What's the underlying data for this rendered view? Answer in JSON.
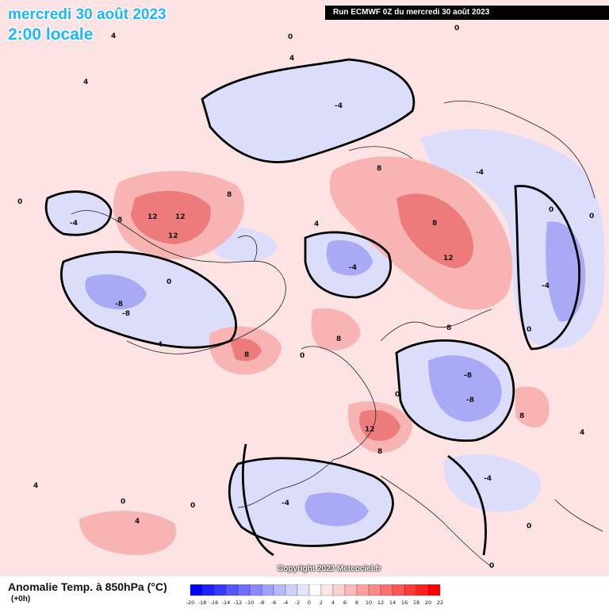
{
  "header": {
    "date": "mercredi 30 août 2023",
    "time": "2:00 locale",
    "run": "Run ECMWF 0Z du mercredi 30 août 2023"
  },
  "footer": {
    "parameter": "Anomalie Temp. à 850hPa (°C)",
    "step": "(+0h)",
    "copyright": "Copyright 2023 Meteociel.fr"
  },
  "legend": {
    "ticks": [
      "-20",
      "-18",
      "-16",
      "-14",
      "-12",
      "-10",
      "-8",
      "-6",
      "-4",
      "-2",
      "0",
      "2",
      "4",
      "6",
      "8",
      "10",
      "12",
      "14",
      "16",
      "18",
      "20",
      "22"
    ],
    "colors": [
      "#0000ff",
      "#2020ff",
      "#3a3aff",
      "#5555ff",
      "#6e6eff",
      "#8888ff",
      "#a0a0ff",
      "#b8b8ff",
      "#d0d0ff",
      "#e6e6ff",
      "#ffffff",
      "#ffe6e6",
      "#ffd0d0",
      "#ffb8b8",
      "#ffa0a0",
      "#ff8888",
      "#ff6e6e",
      "#ff5555",
      "#ff3a3a",
      "#ff2020",
      "#ff0000"
    ]
  },
  "contour_labels": [
    "0",
    "4",
    "8",
    "12",
    "-4",
    "-8"
  ]
}
